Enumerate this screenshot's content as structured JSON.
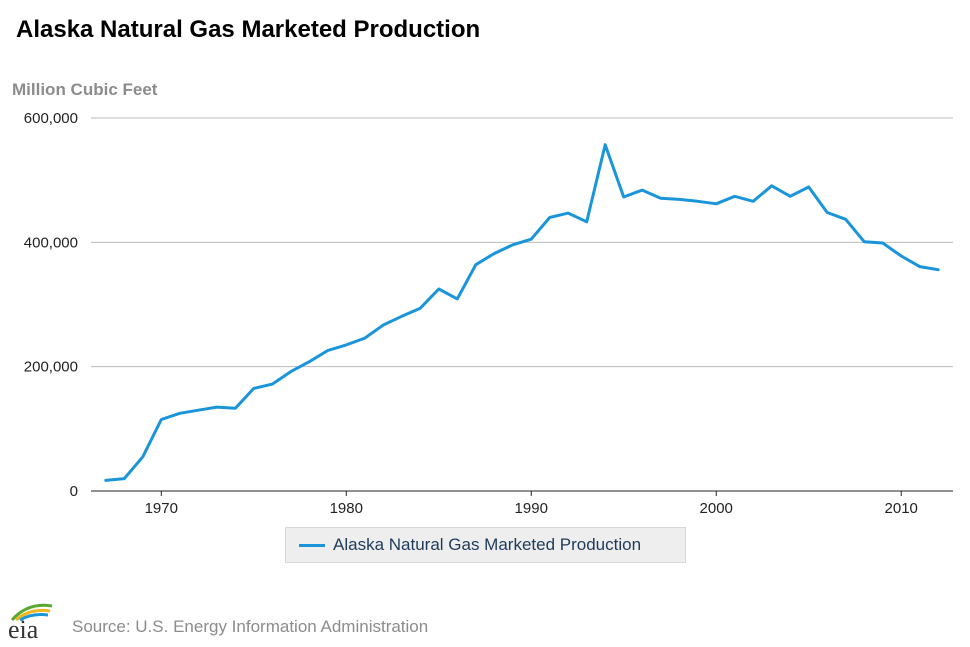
{
  "title": "Alaska Natural Gas Marketed Production",
  "units_label": "Million Cubic Feet",
  "source": "Source: U.S. Energy Information Administration",
  "logo_text": "eia",
  "colors": {
    "series": "#1a95d9",
    "grid": "#bcbcbc",
    "axis": "#222222"
  },
  "chart_data": {
    "type": "line",
    "title": "Alaska Natural Gas Marketed Production",
    "ylabel": "Million Cubic Feet",
    "xlabel": "",
    "xlim": [
      1967,
      2012
    ],
    "ylim": [
      0,
      600000
    ],
    "x_ticks": [
      1970,
      1980,
      1990,
      2000,
      2010
    ],
    "x_tick_labels": [
      "1970",
      "1980",
      "1990",
      "2000",
      "2010"
    ],
    "y_ticks": [
      0,
      200000,
      400000,
      600000
    ],
    "y_tick_labels": [
      "0",
      "200,000",
      "400,000",
      "600,000"
    ],
    "grid": "horizontal",
    "legend_position": "bottom-center",
    "x": [
      1967,
      1968,
      1969,
      1970,
      1971,
      1972,
      1973,
      1974,
      1975,
      1976,
      1977,
      1978,
      1979,
      1980,
      1981,
      1982,
      1983,
      1984,
      1985,
      1986,
      1987,
      1988,
      1989,
      1990,
      1991,
      1992,
      1993,
      1994,
      1995,
      1996,
      1997,
      1998,
      1999,
      2000,
      2001,
      2002,
      2003,
      2004,
      2005,
      2006,
      2007,
      2008,
      2009,
      2010,
      2011,
      2012
    ],
    "series": [
      {
        "name": "Alaska Natural Gas Marketed Production",
        "values": [
          17000,
          20000,
          55000,
          115000,
          125000,
          130000,
          135000,
          133000,
          165000,
          172000,
          192000,
          208000,
          226000,
          235000,
          246000,
          267000,
          281000,
          294000,
          325000,
          309000,
          364000,
          382000,
          396000,
          405000,
          440000,
          447000,
          433000,
          557000,
          473000,
          484000,
          471000,
          469000,
          466000,
          462000,
          474000,
          466000,
          491000,
          474000,
          489000,
          448000,
          437000,
          401000,
          399000,
          378000,
          361000,
          356000
        ]
      }
    ]
  }
}
